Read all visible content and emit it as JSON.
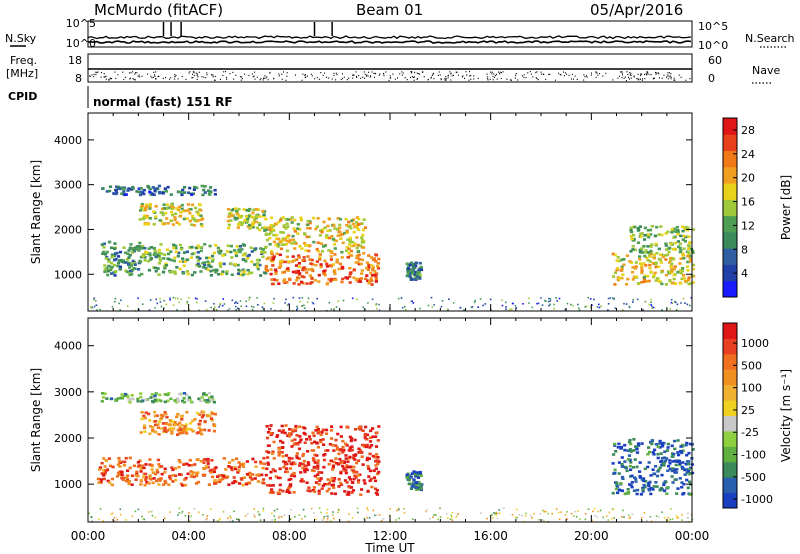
{
  "header": {
    "station": "McMurdo (fitACF)",
    "beam": "Beam 01",
    "date": "05/Apr/2016"
  },
  "summary": {
    "left_labels": {
      "nsky": "N.Sky",
      "freq": "Freq.",
      "freq_unit": "[MHz]",
      "cpid": "CPID"
    },
    "right_labels": {
      "nsearch": "N.Search",
      "nave": "Nave"
    },
    "nsky_ticks": [
      "10^5",
      "10^0"
    ],
    "nsearch_ticks": [
      "10^5",
      "10^0"
    ],
    "freq_ticks": [
      "18",
      "8"
    ],
    "nave_ticks": [
      "60",
      "0"
    ],
    "cpid_text": "normal (fast) 151 RF"
  },
  "chart_data": [
    {
      "type": "heatmap",
      "name": "power",
      "ylabel": "Slant Range [km]",
      "ylim": [
        180,
        4600
      ],
      "yticks": [
        1000,
        2000,
        3000,
        4000
      ],
      "xlim": [
        0,
        24
      ],
      "xticks": [
        "00:00",
        "04:00",
        "08:00",
        "12:00",
        "16:00",
        "20:00",
        "00:00"
      ],
      "colorbar": {
        "label": "Power [dB]",
        "ticks": [
          "4",
          "8",
          "12",
          "16",
          "20",
          "24",
          "28"
        ],
        "range": [
          0,
          30
        ],
        "colors": [
          "#1a1aff",
          "#2040a8",
          "#2f5fa0",
          "#3a8a5a",
          "#4f9e55",
          "#9fc83a",
          "#e8d21a",
          "#f0a020",
          "#f07a18",
          "#e8401a",
          "#e01515"
        ]
      },
      "regions": [
        {
          "t0": 0.5,
          "t1": 2.0,
          "r0": 1000,
          "r1": 1750,
          "level": 0.35
        },
        {
          "t0": 2.0,
          "t1": 7.0,
          "r0": 1000,
          "r1": 1700,
          "level": 0.42
        },
        {
          "t0": 2.0,
          "t1": 4.5,
          "r0": 2100,
          "r1": 2600,
          "level": 0.55
        },
        {
          "t0": 5.5,
          "t1": 7.0,
          "r0": 2000,
          "r1": 2500,
          "level": 0.5
        },
        {
          "t0": 7.0,
          "t1": 11.5,
          "r0": 800,
          "r1": 1500,
          "level": 0.8
        },
        {
          "t0": 7.0,
          "t1": 11.0,
          "r0": 1500,
          "r1": 2300,
          "level": 0.6
        },
        {
          "t0": 0.5,
          "t1": 5.0,
          "r0": 2800,
          "r1": 3000,
          "level": 0.25
        },
        {
          "t0": 12.6,
          "t1": 13.2,
          "r0": 900,
          "r1": 1300,
          "level": 0.3
        },
        {
          "t0": 20.8,
          "t1": 24.0,
          "r0": 800,
          "r1": 1500,
          "level": 0.6
        },
        {
          "t0": 21.5,
          "t1": 24.0,
          "r0": 1500,
          "r1": 2100,
          "level": 0.45
        }
      ]
    },
    {
      "type": "heatmap",
      "name": "velocity",
      "ylabel": "Slant Range [km]",
      "ylim": [
        180,
        4600
      ],
      "yticks": [
        1000,
        2000,
        3000,
        4000
      ],
      "xlim": [
        0,
        24
      ],
      "xticks": [
        "00:00",
        "04:00",
        "08:00",
        "12:00",
        "16:00",
        "20:00",
        "00:00"
      ],
      "xlabel": "Time UT",
      "colorbar": {
        "label": "Velocity [m s⁻¹]",
        "ticks": [
          "1000",
          "500",
          "100",
          "25",
          "-25",
          "-100",
          "-500",
          "-1000"
        ],
        "colors": [
          "#1a3fc0",
          "#2a5fb0",
          "#3a8a5a",
          "#5fb040",
          "#8fd040",
          "#c8c8c8",
          "#f0d020",
          "#f0b030",
          "#f09020",
          "#f07020",
          "#e84020",
          "#e01515"
        ]
      },
      "regions": [
        {
          "t0": 0.3,
          "t1": 7.0,
          "r0": 1000,
          "r1": 1600,
          "level": 0.82
        },
        {
          "t0": 2.0,
          "t1": 5.0,
          "r0": 2100,
          "r1": 2600,
          "level": 0.72
        },
        {
          "t0": 7.0,
          "t1": 11.5,
          "r0": 800,
          "r1": 2300,
          "level": 0.92
        },
        {
          "t0": 0.5,
          "t1": 5.0,
          "r0": 2800,
          "r1": 3000,
          "level": 0.3
        },
        {
          "t0": 12.6,
          "t1": 13.2,
          "r0": 900,
          "r1": 1300,
          "level": 0.15
        },
        {
          "t0": 20.8,
          "t1": 24.0,
          "r0": 800,
          "r1": 2000,
          "level": 0.12
        }
      ]
    }
  ]
}
